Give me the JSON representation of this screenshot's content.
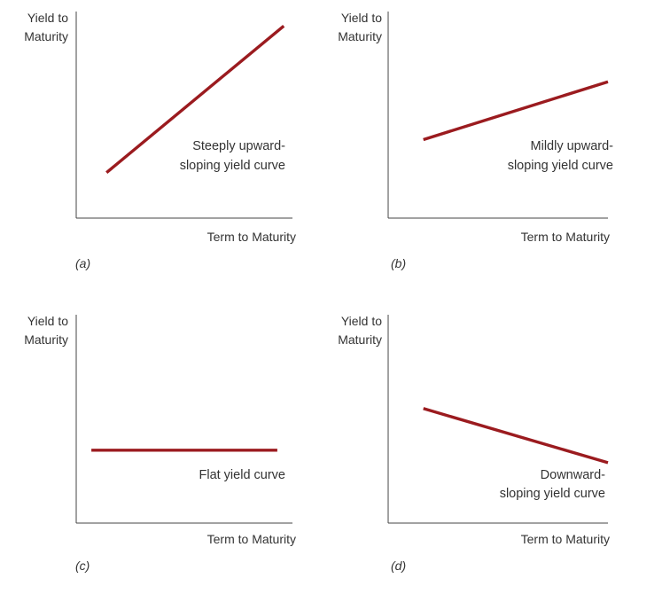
{
  "chart_data": [
    {
      "type": "line",
      "panel_label": "(a)",
      "ylabel": [
        "Yield to",
        "Maturity"
      ],
      "xlabel": "Term to Maturity",
      "annotation": [
        "Steeply upward-",
        "sloping yield curve"
      ],
      "series": [
        {
          "x": [
            0.14,
            0.96
          ],
          "y": [
            0.22,
            0.93
          ]
        }
      ],
      "xlim": [
        0,
        1
      ],
      "ylim": [
        0,
        1
      ],
      "grid": false,
      "line_color": "#9b1b1f"
    },
    {
      "type": "line",
      "panel_label": "(b)",
      "ylabel": [
        "Yield to",
        "Maturity"
      ],
      "xlabel": "Term to Maturity",
      "annotation": [
        "Mildly upward-",
        "sloping yield curve"
      ],
      "series": [
        {
          "x": [
            0.16,
            1.0
          ],
          "y": [
            0.38,
            0.66
          ]
        }
      ],
      "xlim": [
        0,
        1
      ],
      "ylim": [
        0,
        1
      ],
      "grid": false,
      "line_color": "#9b1b1f"
    },
    {
      "type": "line",
      "panel_label": "(c)",
      "ylabel": [
        "Yield to",
        "Maturity"
      ],
      "xlabel": "Term to Maturity",
      "annotation": [
        "Flat yield curve"
      ],
      "series": [
        {
          "x": [
            0.07,
            0.93
          ],
          "y": [
            0.35,
            0.35
          ]
        }
      ],
      "xlim": [
        0,
        1
      ],
      "ylim": [
        0,
        1
      ],
      "grid": false,
      "line_color": "#9b1b1f"
    },
    {
      "type": "line",
      "panel_label": "(d)",
      "ylabel": [
        "Yield to",
        "Maturity"
      ],
      "xlabel": "Term to Maturity",
      "annotation": [
        "Downward-",
        "sloping yield curve"
      ],
      "series": [
        {
          "x": [
            0.16,
            1.0
          ],
          "y": [
            0.55,
            0.29
          ]
        }
      ],
      "xlim": [
        0,
        1
      ],
      "ylim": [
        0,
        1
      ],
      "grid": false,
      "line_color": "#9b1b1f"
    }
  ]
}
